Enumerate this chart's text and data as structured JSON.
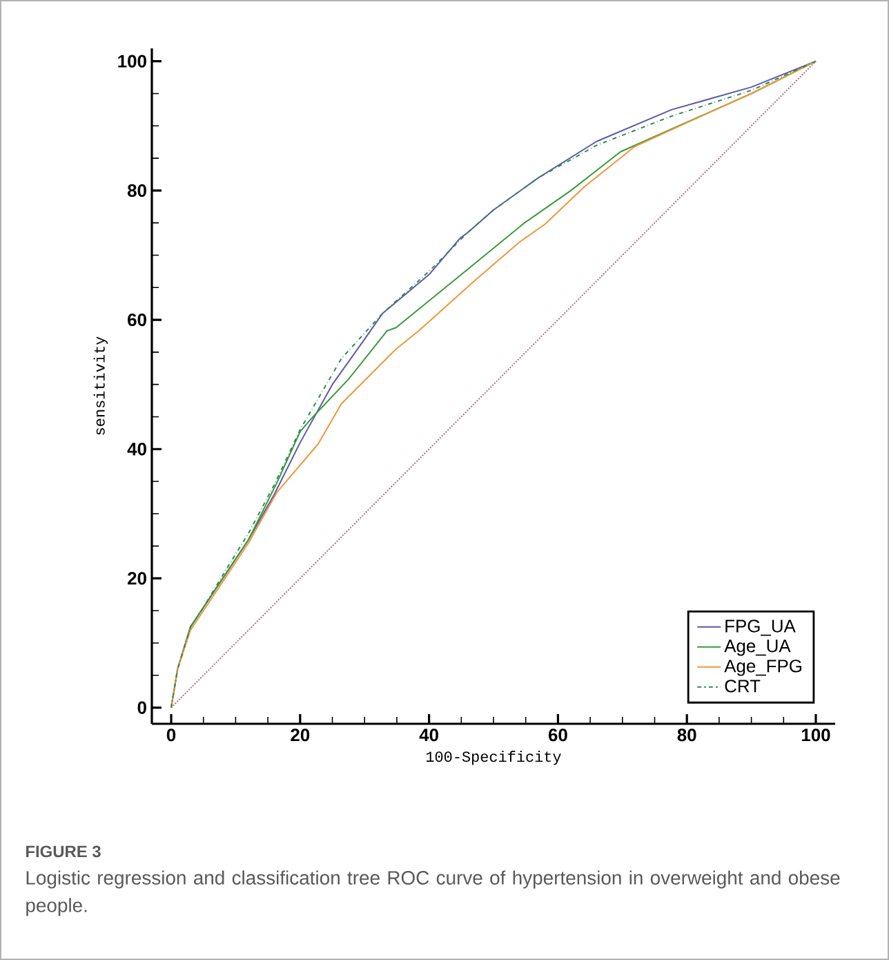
{
  "chart_data": {
    "type": "line",
    "xlabel": "100-Specificity",
    "ylabel": "sensitivity",
    "xlim": [
      -3,
      103
    ],
    "ylim": [
      -2.5,
      102
    ],
    "xticks": [
      0,
      20,
      40,
      60,
      80,
      100
    ],
    "yticks": [
      0,
      20,
      40,
      60,
      80,
      100
    ],
    "grid": false,
    "legend": "bottom right",
    "marker": "none",
    "annotations": [
      "FIGURE 3",
      "Logistic regression and classification tree ROC curve of hypertension in overweight and obese people."
    ],
    "series": [
      {
        "name": "FPG_UA",
        "color": "#5a5aa8",
        "line_style": "solid",
        "x": [
          0,
          1,
          3,
          5,
          8,
          12,
          16,
          20,
          25,
          30,
          32.8,
          40,
          44.8,
          46,
          50,
          57,
          66,
          77.6,
          90,
          100
        ],
        "values": [
          0,
          6,
          12.5,
          15.5,
          20,
          26,
          33,
          41,
          50,
          57,
          61,
          67,
          72.6,
          73.5,
          77,
          82,
          87.6,
          92.5,
          96,
          100
        ]
      },
      {
        "name": "Age_UA",
        "color": "#3a9a3a",
        "line_style": "solid",
        "x": [
          0,
          1,
          3,
          5,
          8,
          12,
          16.4,
          20,
          22,
          27.5,
          33.5,
          34.9,
          45,
          54.8,
          62,
          69.7,
          90,
          100
        ],
        "values": [
          0,
          6,
          12.5,
          15.5,
          20,
          26,
          34.8,
          42.7,
          45,
          50.8,
          58.3,
          58.8,
          67,
          75,
          80,
          86,
          95,
          100
        ]
      },
      {
        "name": "Age_FPG",
        "color": "#f0963c",
        "line_style": "solid",
        "x": [
          0,
          1,
          3,
          5,
          8,
          12,
          16.4,
          22.8,
          26.4,
          34.9,
          38.4,
          47,
          54,
          58,
          64,
          71.9,
          80,
          90,
          100
        ],
        "values": [
          0,
          6,
          12,
          15,
          19.5,
          25.5,
          33.3,
          40.8,
          47,
          55.5,
          58.3,
          66,
          72,
          74.8,
          80.5,
          86.8,
          90.5,
          95,
          100
        ]
      },
      {
        "name": "CRT",
        "color": "#2e8b57",
        "line_style": "dashed",
        "x": [
          0,
          1,
          3,
          5,
          8,
          12,
          16,
          20,
          26.4,
          32.8,
          40,
          46,
          50,
          57,
          66,
          77.6,
          90,
          100
        ],
        "values": [
          0,
          6,
          12.5,
          15.5,
          20.5,
          27,
          34.5,
          43,
          54,
          61,
          67.5,
          73.5,
          77,
          82,
          87,
          91.5,
          95.5,
          100
        ]
      },
      {
        "color": "#b07080",
        "line_style": "dotted",
        "x": [
          0,
          100
        ],
        "values": [
          0,
          100
        ]
      }
    ]
  }
}
